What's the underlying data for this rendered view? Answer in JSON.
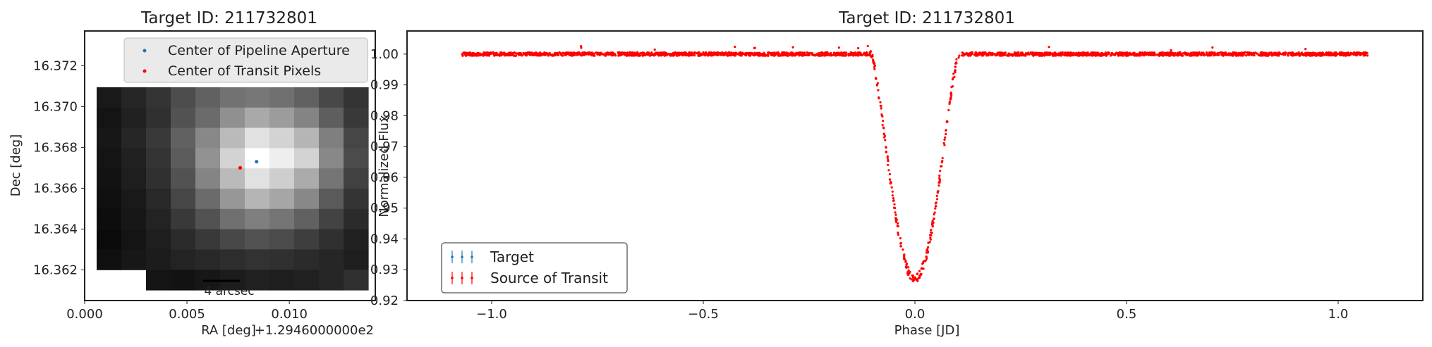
{
  "chart_data": [
    {
      "type": "heatmap",
      "title": "Target ID: 211732801",
      "xlabel": "RA [deg]",
      "ylabel": "Dec [deg]",
      "x_offset_text": "+1.2946000000e2",
      "xlim": [
        0.0,
        0.0142
      ],
      "ylim": [
        16.3605,
        16.3737
      ],
      "x_ticks": [
        "0.000",
        "0.005",
        "0.010"
      ],
      "x_tick_values": [
        0.0,
        0.005,
        0.01
      ],
      "y_ticks": [
        "16.362",
        "16.364",
        "16.366",
        "16.368",
        "16.370",
        "16.372"
      ],
      "y_tick_values": [
        16.362,
        16.364,
        16.366,
        16.368,
        16.37,
        16.372
      ],
      "colormap": "grayscale",
      "pixel_intensity": [
        [
          0.07,
          0.12,
          0.18,
          0.28,
          0.36,
          0.43,
          0.45,
          0.42,
          0.36,
          0.26,
          0.18
        ],
        [
          0.05,
          0.1,
          0.16,
          0.3,
          0.4,
          0.55,
          0.65,
          0.6,
          0.5,
          0.35,
          0.2
        ],
        [
          0.06,
          0.12,
          0.2,
          0.36,
          0.52,
          0.72,
          0.88,
          0.82,
          0.7,
          0.48,
          0.25
        ],
        [
          0.05,
          0.1,
          0.18,
          0.34,
          0.56,
          0.82,
          1.0,
          0.93,
          0.82,
          0.52,
          0.27
        ],
        [
          0.04,
          0.09,
          0.16,
          0.3,
          0.5,
          0.72,
          0.88,
          0.8,
          0.66,
          0.44,
          0.23
        ],
        [
          0.03,
          0.07,
          0.13,
          0.25,
          0.4,
          0.58,
          0.7,
          0.64,
          0.52,
          0.33,
          0.18
        ],
        [
          0.02,
          0.06,
          0.11,
          0.2,
          0.3,
          0.42,
          0.48,
          0.44,
          0.36,
          0.24,
          0.14
        ],
        [
          0.01,
          0.05,
          0.09,
          0.14,
          0.2,
          0.26,
          0.3,
          0.27,
          0.22,
          0.16,
          0.1
        ],
        [
          0.03,
          0.06,
          0.08,
          0.11,
          0.13,
          0.15,
          0.17,
          0.16,
          0.14,
          0.12,
          0.09
        ],
        [
          null,
          null,
          0.05,
          0.04,
          0.06,
          0.08,
          0.1,
          0.09,
          0.1,
          0.12,
          0.16
        ]
      ],
      "points": [
        {
          "name": "Center of Pipeline Aperture",
          "x": 0.0084,
          "y": 16.3673,
          "color": "#1f77b4"
        },
        {
          "name": "Center of Transit Pixels",
          "x": 0.0076,
          "y": 16.367,
          "color": "#ff0000"
        }
      ],
      "scale_bar_label": "4 arcsec",
      "legend_position": "top-right"
    },
    {
      "type": "scatter",
      "title": "Target ID: 211732801",
      "xlabel": "Phase [JD]",
      "ylabel": "Normalized Flux",
      "xlim": [
        -1.2,
        1.2
      ],
      "ylim": [
        0.92,
        1.0075
      ],
      "x_ticks": [
        "−1.0",
        "−0.5",
        "0.0",
        "0.5",
        "1.0"
      ],
      "x_tick_values": [
        -1.0,
        -0.5,
        0.0,
        0.5,
        1.0
      ],
      "y_ticks": [
        "0.92",
        "0.93",
        "0.94",
        "0.95",
        "0.96",
        "0.97",
        "0.98",
        "0.99",
        "1.00"
      ],
      "y_tick_values": [
        0.92,
        0.93,
        0.94,
        0.95,
        0.96,
        0.97,
        0.98,
        0.99,
        1.0
      ],
      "series": [
        {
          "name": "Target",
          "color": "#1f77b4",
          "marker": "errorbar"
        },
        {
          "name": "Source of Transit",
          "color": "#ff0000",
          "marker": "errorbar"
        }
      ],
      "light_curve": {
        "phase_range": [
          -1.07,
          1.07
        ],
        "baseline_flux": 1.0,
        "transit_center": 0.0,
        "transit_min_flux": 0.927,
        "ingress_start": -0.105,
        "egress_end": 0.105
      },
      "legend_position": "bottom-left"
    }
  ]
}
